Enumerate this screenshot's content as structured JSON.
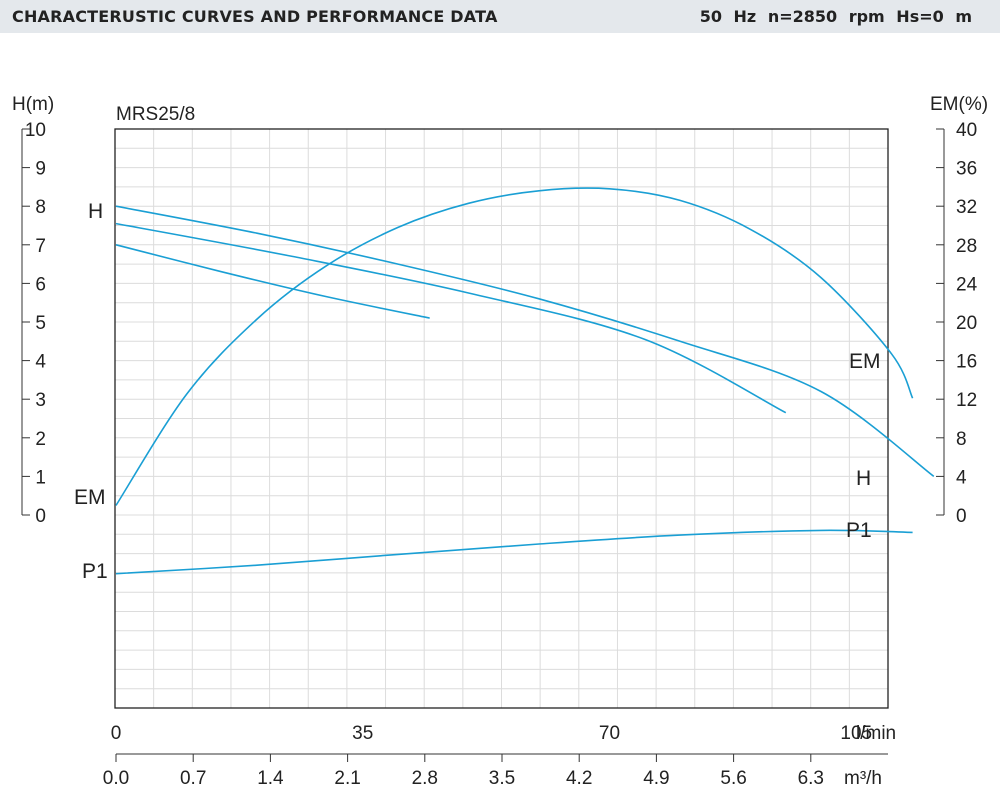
{
  "header": {
    "title": "CHARACTERUSTIC CURVES AND PERFORMANCE DATA",
    "conditions": "50 Hz  n=2850  rpm  Hs=0 m"
  },
  "chart_data": {
    "type": "line",
    "model": "MRS25/8",
    "curve_color": "#1a9fd4",
    "grid": true,
    "left_axis": {
      "label": "H(m)",
      "range": [
        0,
        10
      ],
      "ticks": [
        "0",
        "1",
        "2",
        "3",
        "4",
        "5",
        "6",
        "7",
        "8",
        "9",
        "10"
      ]
    },
    "right_axis": {
      "label": "EM(%)",
      "range": [
        0,
        40
      ],
      "ticks": [
        "0",
        "4",
        "8",
        "12",
        "16",
        "20",
        "24",
        "28",
        "32",
        "36",
        "40"
      ]
    },
    "x_axis_lmin": {
      "unit": "l/min",
      "ticks": [
        {
          "value": 0,
          "label": "0"
        },
        {
          "value": 35,
          "label": "35"
        },
        {
          "value": 70,
          "label": "70"
        },
        {
          "value": 105,
          "label": "105"
        }
      ]
    },
    "x_axis_m3h": {
      "unit": "m³/h",
      "ticks": [
        "0.0",
        "0.7",
        "1.4",
        "2.1",
        "2.8",
        "3.5",
        "4.2",
        "4.9",
        "5.6",
        "6.3"
      ]
    },
    "series": [
      {
        "name": "H",
        "axis": "left",
        "x": [
          0,
          20,
          40,
          60,
          80,
          100,
          116
        ],
        "y": [
          8.0,
          7.3,
          6.5,
          5.6,
          4.5,
          3.2,
          1.0
        ]
      },
      {
        "x": [
          0,
          25,
          50,
          75,
          95
        ],
        "y": [
          7.55,
          6.7,
          5.75,
          4.55,
          2.65
        ]
      },
      {
        "x": [
          0,
          15,
          30,
          44.5
        ],
        "y": [
          7.0,
          6.3,
          5.65,
          5.1
        ]
      },
      {
        "name": "EM",
        "axis": "right",
        "x": [
          0,
          10,
          20,
          30,
          40,
          50,
          60,
          70,
          80,
          90,
          100,
          110,
          113
        ],
        "y": [
          1.0,
          12.5,
          20.3,
          25.9,
          29.8,
          32.3,
          33.6,
          33.8,
          32.6,
          29.6,
          24.6,
          16.7,
          12.1
        ]
      },
      {
        "name": "P1",
        "x": [
          0,
          20,
          40,
          60,
          80,
          100,
          113
        ],
        "y": [
          -1.52,
          -1.3,
          -1.02,
          -0.75,
          -0.52,
          -0.4,
          -0.45
        ]
      }
    ],
    "curve_labels": [
      {
        "text": "H",
        "side": "left"
      },
      {
        "text": "H",
        "side": "right"
      },
      {
        "text": "EM",
        "side": "left"
      },
      {
        "text": "EM",
        "side": "right"
      },
      {
        "text": "P1",
        "side": "left"
      },
      {
        "text": "P1",
        "side": "right"
      }
    ]
  }
}
